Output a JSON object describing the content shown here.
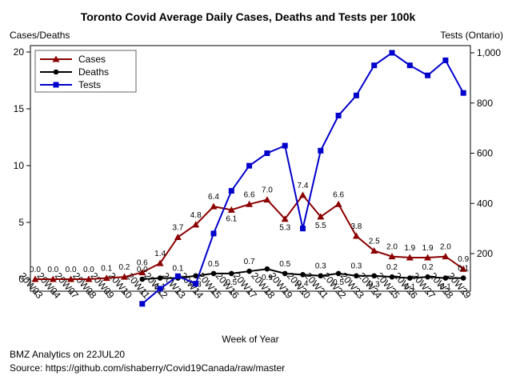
{
  "chart_data": {
    "type": "line",
    "title": "Toronto Covid Average Daily Cases, Deaths and Tests per 100k",
    "xlabel": "Week of Year",
    "ylabel_left": "Cases/Deaths",
    "ylabel_right": "Tests (Ontario)",
    "categories": [
      "20W03",
      "20W04",
      "20W07",
      "20W08",
      "20W09",
      "20W10",
      "20W11",
      "20W12",
      "20W13",
      "20W14",
      "20W15",
      "20W16",
      "20W17",
      "20W18",
      "20W19",
      "20W20",
      "20W21",
      "20W22",
      "20W23",
      "20W24",
      "20W25",
      "20W26",
      "20W27",
      "20W28",
      "20W29"
    ],
    "ylim_left": [
      0,
      20
    ],
    "yticks_left": [
      0,
      5,
      10,
      15,
      20
    ],
    "ylim_right": [
      0,
      1000
    ],
    "yticks_right": [
      200,
      400,
      600,
      800,
      1000
    ],
    "yticklabels_right": [
      "200",
      "400",
      "600",
      "800",
      "1,000"
    ],
    "legend_position": "top-left",
    "grid": false,
    "series": [
      {
        "name": "Cases",
        "axis": "left",
        "color": "#8B0000",
        "marker": "triangle",
        "values": [
          0.0,
          0.0,
          0.0,
          0.0,
          0.1,
          0.2,
          0.6,
          1.4,
          3.7,
          4.8,
          6.4,
          6.1,
          6.6,
          7.0,
          5.3,
          7.4,
          5.5,
          6.6,
          3.8,
          2.5,
          2.0,
          1.9,
          1.9,
          2.0,
          0.9
        ],
        "labels": [
          "0.0",
          "0.0",
          "0.0",
          "0.0",
          "0.1",
          "0.2",
          "0.6",
          "1.4",
          "3.7",
          "4.8",
          "6.4",
          "6.1",
          "6.6",
          "7.0",
          "5.3",
          "7.4",
          "5.5",
          "6.6",
          "3.8",
          "2.5",
          "2.0",
          "1.9",
          "1.9",
          "2.0",
          "0.9"
        ]
      },
      {
        "name": "Deaths",
        "axis": "left",
        "color": "#000000",
        "marker": "circle",
        "values": [
          null,
          null,
          null,
          null,
          null,
          null,
          0.0,
          0.1,
          0.1,
          0.3,
          0.5,
          0.5,
          0.7,
          0.9,
          0.5,
          0.4,
          0.3,
          0.5,
          0.3,
          0.3,
          0.2,
          0.1,
          0.2,
          0.1,
          0.1
        ],
        "labels": [
          "",
          "",
          "",
          "",
          "",
          "",
          "0.0",
          "0.1",
          "0.1",
          "0.3",
          "0.5",
          "0.5",
          "0.7",
          "0.9",
          "0.5",
          "0.4",
          "0.3",
          "0.5",
          "0.3",
          "0.3",
          "0.2",
          "0.1",
          "0.2",
          "0.1",
          "0.1"
        ]
      },
      {
        "name": "Tests",
        "axis": "right",
        "color": "#0000CC",
        "marker": "square",
        "values": [
          null,
          null,
          null,
          null,
          null,
          null,
          0,
          60,
          110,
          80,
          280,
          450,
          550,
          600,
          630,
          300,
          610,
          750,
          830,
          950,
          1000,
          950,
          910,
          970,
          840
        ]
      }
    ],
    "footer": [
      "BMZ Analytics on 22JUL20",
      "Source: https://github.com/ishaberry/Covid19Canada/raw/master"
    ]
  }
}
